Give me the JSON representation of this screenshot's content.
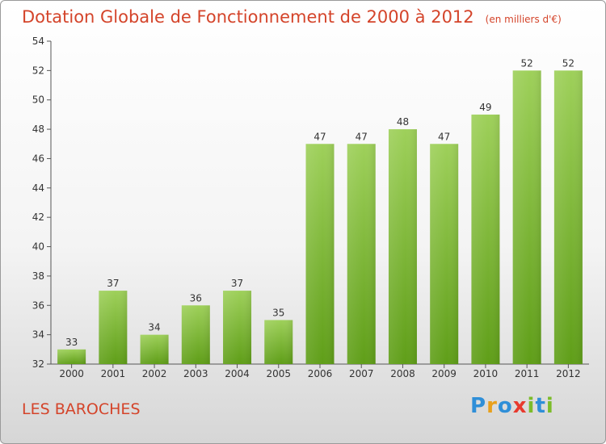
{
  "title": "Dotation Globale de Fonctionnement de 2000 à 2012",
  "unit_note": "(en milliers d'€)",
  "commune": "LES BAROCHES",
  "logo": {
    "letters": [
      "P",
      "r",
      "o",
      "x",
      "i",
      "t",
      "i"
    ],
    "colors": [
      "#2f8fd8",
      "#e8a01c",
      "#2f8fd8",
      "#e83a2e",
      "#7cbc2a",
      "#2f8fd8",
      "#7cbc2a"
    ]
  },
  "chart_data": {
    "type": "bar",
    "categories": [
      "2000",
      "2001",
      "2002",
      "2003",
      "2004",
      "2005",
      "2006",
      "2007",
      "2008",
      "2009",
      "2010",
      "2011",
      "2012"
    ],
    "values": [
      33,
      37,
      34,
      36,
      37,
      35,
      47,
      47,
      48,
      47,
      49,
      52,
      52
    ],
    "ylim": [
      32,
      54
    ],
    "yticks": [
      32,
      34,
      36,
      38,
      40,
      42,
      44,
      46,
      48,
      50,
      52,
      54
    ],
    "grid": false,
    "bar_color": "#7cbc2a",
    "xlabel": "",
    "ylabel": ""
  }
}
